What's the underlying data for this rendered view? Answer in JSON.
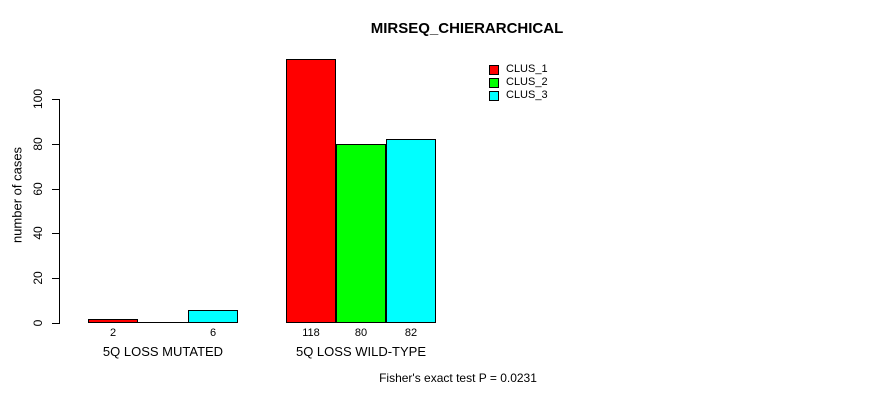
{
  "chart_data": {
    "type": "bar",
    "title": "MIRSEQ_CHIERARCHICAL",
    "xlabel": "",
    "ylabel": "number of cases",
    "ylim": [
      0,
      118
    ],
    "yticks": [
      0,
      20,
      40,
      60,
      80,
      100
    ],
    "grid": false,
    "legend_position": "top-right",
    "categories": [
      "5Q LOSS MUTATED",
      "5Q LOSS WILD-TYPE"
    ],
    "series": [
      {
        "name": "CLUS_1",
        "color": "#ff0000",
        "values": [
          2,
          118
        ]
      },
      {
        "name": "CLUS_2",
        "color": "#00ff00",
        "values": [
          0,
          80
        ]
      },
      {
        "name": "CLUS_3",
        "color": "#00ffff",
        "values": [
          6,
          82
        ]
      }
    ],
    "bar_value_labels_shown": [
      "2",
      "6",
      "118",
      "80",
      "82"
    ],
    "annotation": "Fisher's exact test P = 0.0231"
  },
  "colors": {
    "background": "#ffffff",
    "text": "#000000",
    "axis": "#000000",
    "bar_border": "#000000"
  }
}
